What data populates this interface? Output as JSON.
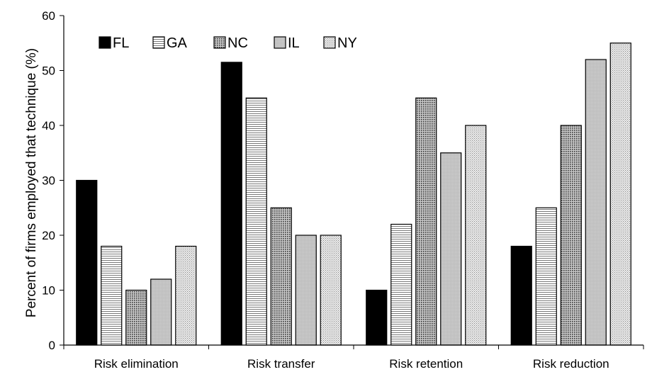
{
  "chart_data": {
    "type": "bar",
    "title": "",
    "xlabel": "",
    "ylabel": "Percent of firms employed that technique (%)",
    "ylim": [
      0,
      60
    ],
    "yticks": [
      0,
      10,
      20,
      30,
      40,
      50,
      60
    ],
    "categories": [
      "Risk elimination",
      "Risk transfer",
      "Risk retention",
      "Risk reduction"
    ],
    "series": [
      {
        "name": "FL",
        "values": [
          30,
          51.5,
          10,
          18
        ]
      },
      {
        "name": "GA",
        "values": [
          18,
          45,
          22,
          25
        ]
      },
      {
        "name": "NC",
        "values": [
          10,
          25,
          45,
          40
        ]
      },
      {
        "name": "IL",
        "values": [
          12,
          20,
          35,
          52
        ]
      },
      {
        "name": "NY",
        "values": [
          18,
          20,
          40,
          55
        ]
      }
    ],
    "legend_position": "top-left",
    "grid": false
  }
}
